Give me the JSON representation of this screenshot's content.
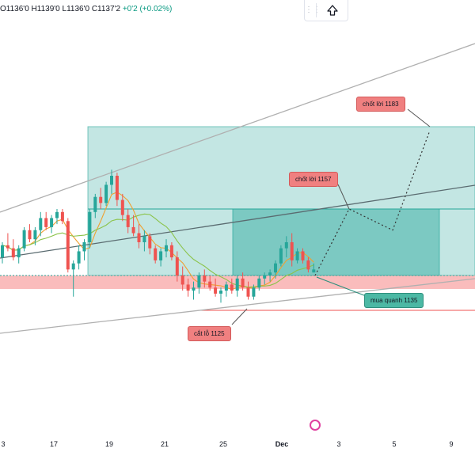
{
  "header": {
    "ohlc_text": "O1136'0 H1139'0 L1136'0 C1137'2",
    "change_text": "+0'2 (+0.02%)"
  },
  "toolbar": {
    "up_arrow_icon": "up-arrow-icon",
    "drag_icon": "drag-handle-icon"
  },
  "annotations": {
    "tp2": "chốt lời 1183",
    "tp1": "chốt lời 1157",
    "entry": "mua quanh 1135",
    "stop": "cắt lỗ 1125"
  },
  "colors": {
    "up_candle": "#26a69a",
    "down_candle": "#ef5350",
    "sma_fast": "#f0a030",
    "sma_slow": "#8bc34a",
    "target_zone": "#26a69a",
    "stop_zone": "#f8a5a5",
    "callout_red": "#f08080",
    "callout_green": "#4cb8a4"
  },
  "chart_data": {
    "type": "candlestick",
    "x_tick_labels": [
      "3",
      "17",
      "19",
      "21",
      "25",
      "Dec",
      "3",
      "5",
      "9"
    ],
    "price_levels": {
      "take_profit_2": 1183,
      "take_profit_1": 1157,
      "entry": 1135,
      "stop_loss": 1125
    },
    "ohlc_last": {
      "open": "1136'0",
      "high": "1139'0",
      "low": "1136'0",
      "close": "1137'2",
      "change": "+0'2",
      "change_pct": "+0.02%"
    },
    "candles": [
      [
        1141,
        1146,
        1139,
        1145
      ],
      [
        1145,
        1149,
        1143,
        1144
      ],
      [
        1144,
        1147,
        1140,
        1141
      ],
      [
        1141,
        1145,
        1139,
        1144
      ],
      [
        1144,
        1151,
        1143,
        1150
      ],
      [
        1150,
        1152,
        1146,
        1147
      ],
      [
        1147,
        1151,
        1145,
        1150
      ],
      [
        1150,
        1156,
        1148,
        1154
      ],
      [
        1154,
        1156,
        1150,
        1151
      ],
      [
        1151,
        1155,
        1149,
        1154
      ],
      [
        1154,
        1157,
        1152,
        1156
      ],
      [
        1156,
        1157,
        1152,
        1153
      ],
      [
        1153,
        1154,
        1136,
        1137
      ],
      [
        1137,
        1140,
        1128,
        1139
      ],
      [
        1139,
        1145,
        1137,
        1143
      ],
      [
        1143,
        1147,
        1140,
        1146
      ],
      [
        1146,
        1157,
        1144,
        1156
      ],
      [
        1156,
        1162,
        1154,
        1161
      ],
      [
        1161,
        1164,
        1157,
        1159
      ],
      [
        1159,
        1166,
        1158,
        1165
      ],
      [
        1165,
        1170,
        1162,
        1168
      ],
      [
        1168,
        1169,
        1158,
        1160
      ],
      [
        1160,
        1162,
        1153,
        1155
      ],
      [
        1155,
        1157,
        1149,
        1151
      ],
      [
        1151,
        1155,
        1148,
        1149
      ],
      [
        1149,
        1152,
        1144,
        1146
      ],
      [
        1146,
        1150,
        1143,
        1148
      ],
      [
        1148,
        1149,
        1142,
        1144
      ],
      [
        1144,
        1145,
        1139,
        1140
      ],
      [
        1140,
        1144,
        1138,
        1143
      ],
      [
        1143,
        1147,
        1141,
        1145
      ],
      [
        1145,
        1146,
        1140,
        1141
      ],
      [
        1141,
        1143,
        1133,
        1135
      ],
      [
        1135,
        1138,
        1130,
        1132
      ],
      [
        1132,
        1134,
        1128,
        1130
      ],
      [
        1130,
        1133,
        1127,
        1131
      ],
      [
        1131,
        1136,
        1129,
        1135
      ],
      [
        1135,
        1137,
        1131,
        1133
      ],
      [
        1133,
        1135,
        1130,
        1131
      ],
      [
        1131,
        1134,
        1128,
        1129
      ],
      [
        1129,
        1131,
        1126,
        1130
      ],
      [
        1130,
        1133,
        1128,
        1132
      ],
      [
        1132,
        1134,
        1129,
        1130
      ],
      [
        1130,
        1135,
        1128,
        1134
      ],
      [
        1134,
        1136,
        1130,
        1131
      ],
      [
        1131,
        1133,
        1127,
        1128
      ],
      [
        1128,
        1132,
        1127,
        1131
      ],
      [
        1131,
        1135,
        1130,
        1134
      ],
      [
        1134,
        1136,
        1132,
        1135
      ],
      [
        1135,
        1137,
        1133,
        1136
      ],
      [
        1136,
        1140,
        1134,
        1139
      ],
      [
        1139,
        1145,
        1138,
        1144
      ],
      [
        1144,
        1148,
        1141,
        1146
      ],
      [
        1146,
        1149,
        1138,
        1140
      ],
      [
        1140,
        1144,
        1139,
        1143
      ],
      [
        1143,
        1144,
        1139,
        1140
      ],
      [
        1140,
        1141,
        1136,
        1137
      ],
      [
        1136,
        1139,
        1136,
        1137
      ]
    ],
    "projection_path": [
      {
        "label": "entry",
        "value": 1135
      },
      {
        "label": "tp1",
        "value": 1157
      },
      {
        "label": "pullback",
        "value": 1150
      },
      {
        "label": "tp2",
        "value": 1183
      }
    ]
  }
}
